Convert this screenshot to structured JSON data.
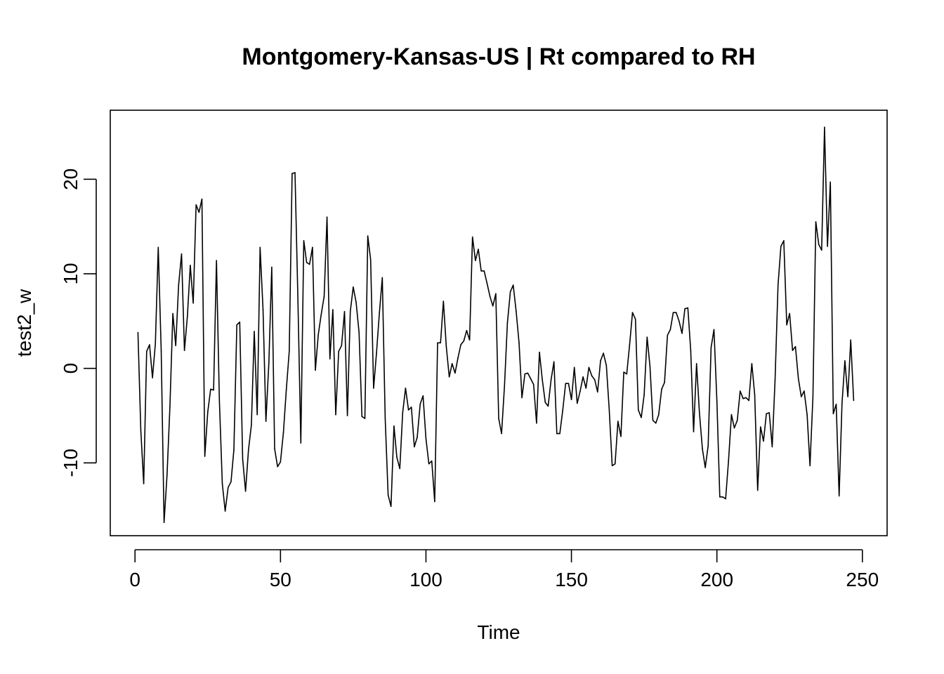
{
  "chart_data": {
    "type": "line",
    "title": "Montgomery-Kansas-US | Rt compared to RH",
    "xlabel": "Time",
    "ylabel": "test2_w",
    "xlim": [
      -8.5,
      258.5
    ],
    "ylim": [
      -17.7,
      27.3
    ],
    "x_ticks": [
      0,
      50,
      100,
      150,
      200,
      250
    ],
    "x_tick_labels": [
      "0",
      "50",
      "100",
      "150",
      "200",
      "250"
    ],
    "y_ticks": [
      -10,
      0,
      10,
      20
    ],
    "y_tick_labels": [
      "-10",
      "0",
      "10",
      "20"
    ],
    "grid": false,
    "line_color": "#000000",
    "series": [
      {
        "x_start": 1,
        "x_step": 1,
        "values": [
          3.8,
          -6.6,
          -12.2,
          1.8,
          2.5,
          -1.0,
          2.6,
          12.8,
          1.9,
          -16.3,
          -11.3,
          -4.1,
          5.8,
          2.4,
          8.8,
          12.1,
          1.9,
          5.5,
          10.9,
          6.9,
          17.3,
          16.5,
          17.9,
          -9.3,
          -4.6,
          -2.2,
          -2.3,
          11.4,
          -3.3,
          -12.2,
          -15.1,
          -12.6,
          -12.0,
          -8.6,
          4.6,
          4.9,
          -9.6,
          -13.0,
          -8.6,
          -6.0,
          3.9,
          -4.9,
          12.8,
          6.2,
          -5.6,
          0.6,
          10.7,
          -8.5,
          -10.4,
          -9.9,
          -6.8,
          -2.3,
          1.8,
          20.6,
          20.7,
          7.1,
          -7.9,
          13.5,
          11.2,
          11.0,
          12.8,
          -0.2,
          3.6,
          5.7,
          7.6,
          16.0,
          1.0,
          6.2,
          -4.9,
          1.8,
          2.4,
          6.0,
          -5.0,
          6.0,
          8.6,
          7.0,
          3.8,
          -5.1,
          -5.3,
          14.0,
          11.5,
          -2.1,
          1.6,
          5.9,
          9.6,
          -5.3,
          -13.4,
          -14.6,
          -6.1,
          -9.4,
          -10.6,
          -4.7,
          -2.1,
          -4.4,
          -4.1,
          -8.3,
          -7.3,
          -3.8,
          -2.9,
          -7.4,
          -10.1,
          -9.8,
          -14.1,
          2.7,
          2.7,
          7.1,
          2.3,
          -0.9,
          0.5,
          -0.5,
          1.1,
          2.5,
          2.9,
          4.0,
          3.0,
          13.9,
          11.4,
          12.6,
          10.3,
          10.3,
          9.0,
          7.6,
          6.6,
          7.9,
          -5.3,
          -6.9,
          -1.8,
          4.8,
          8.1,
          8.8,
          6.0,
          2.7,
          -3.1,
          -0.6,
          -0.5,
          -1.1,
          -1.7,
          -5.8,
          1.7,
          -1.2,
          -3.6,
          -4.0,
          -1.2,
          0.7,
          -6.9,
          -6.9,
          -4.5,
          -1.6,
          -1.6,
          -3.3,
          0.1,
          -3.7,
          -2.4,
          -0.9,
          -2.1,
          0.1,
          -0.8,
          -1.2,
          -2.5,
          0.8,
          1.6,
          0.3,
          -4.4,
          -10.3,
          -10.1,
          -5.6,
          -7.2,
          -0.4,
          -0.6,
          2.5,
          5.9,
          5.2,
          -4.4,
          -5.2,
          -2.8,
          3.3,
          0.2,
          -5.5,
          -5.8,
          -4.9,
          -2.2,
          -1.5,
          3.5,
          4.1,
          5.9,
          5.9,
          5.0,
          3.7,
          6.3,
          6.4,
          1.9,
          -6.7,
          0.5,
          -4.7,
          -8.5,
          -10.5,
          -8.2,
          2.2,
          4.1,
          -3.5,
          -13.6,
          -13.6,
          -13.8,
          -9.8,
          -4.9,
          -6.3,
          -5.5,
          -2.4,
          -3.2,
          -3.1,
          -3.4,
          0.5,
          -2.8,
          -12.9,
          -6.2,
          -7.7,
          -4.8,
          -4.7,
          -8.3,
          -1.2,
          8.8,
          12.9,
          13.5,
          4.6,
          5.8,
          1.9,
          2.3,
          -1.1,
          -3.0,
          -2.4,
          -4.9,
          -10.3,
          -3.0,
          15.5,
          13.1,
          12.5,
          25.5,
          12.9,
          19.7,
          -4.8,
          -3.8,
          -13.5,
          -3.7,
          0.8,
          -3.0,
          3.0,
          -3.4
        ]
      }
    ]
  }
}
